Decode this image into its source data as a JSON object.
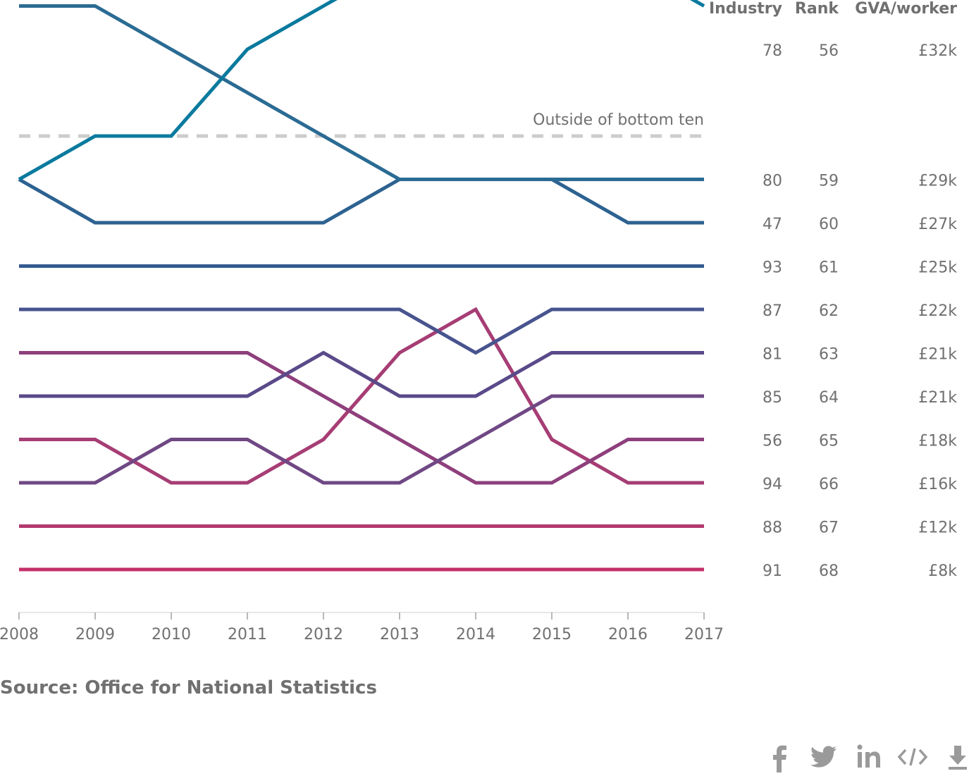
{
  "chart_data": {
    "type": "line",
    "x": [
      2008,
      2009,
      2010,
      2011,
      2012,
      2013,
      2014,
      2015,
      2016,
      2017
    ],
    "y_axis_label_rank_range": [
      56,
      68
    ],
    "separator_label": "Outside of bottom ten",
    "columns": [
      "Industry",
      "Rank",
      "GVA/worker"
    ],
    "series": [
      {
        "industry": "78",
        "rank": "56",
        "gva": "£32k",
        "color": "#0a7a9e",
        "values": [
          59,
          58,
          58,
          56,
          55,
          54,
          54,
          54,
          54,
          55
        ]
      },
      {
        "industry": "80",
        "rank": "59",
        "gva": "£29k",
        "color": "#2a6b93",
        "values": [
          55,
          55,
          56,
          57,
          58,
          59,
          59,
          59,
          59,
          59
        ]
      },
      {
        "industry": "47",
        "rank": "60",
        "gva": "£27k",
        "color": "#2d6291",
        "values": [
          59,
          60,
          60,
          60,
          60,
          59,
          59,
          59,
          60,
          60
        ]
      },
      {
        "industry": "93",
        "rank": "61",
        "gva": "£25k",
        "color": "#345a8f",
        "values": [
          61,
          61,
          61,
          61,
          61,
          61,
          61,
          61,
          61,
          61
        ]
      },
      {
        "industry": "87",
        "rank": "62",
        "gva": "£22k",
        "color": "#48548e",
        "values": [
          62,
          62,
          62,
          62,
          62,
          62,
          63,
          62,
          62,
          62
        ]
      },
      {
        "industry": "81",
        "rank": "63",
        "gva": "£21k",
        "color": "#5a4a89",
        "values": [
          64,
          64,
          64,
          64,
          63,
          64,
          64,
          63,
          63,
          63
        ]
      },
      {
        "industry": "85",
        "rank": "64",
        "gva": "£21k",
        "color": "#6f4884",
        "values": [
          66,
          66,
          65,
          65,
          66,
          66,
          65,
          64,
          64,
          64
        ]
      },
      {
        "industry": "56",
        "rank": "65",
        "gva": "£18k",
        "color": "#8e3f7c",
        "values": [
          63,
          63,
          63,
          63,
          64,
          65,
          66,
          66,
          65,
          65
        ]
      },
      {
        "industry": "94",
        "rank": "66",
        "gva": "£16k",
        "color": "#a63d74",
        "values": [
          65,
          65,
          66,
          66,
          65,
          63,
          62,
          65,
          66,
          66
        ]
      },
      {
        "industry": "88",
        "rank": "67",
        "gva": "£12k",
        "color": "#b3396f",
        "values": [
          67,
          67,
          67,
          67,
          67,
          67,
          67,
          67,
          67,
          67
        ]
      },
      {
        "industry": "91",
        "rank": "68",
        "gva": "£8k",
        "color": "#c3306a",
        "values": [
          68,
          68,
          68,
          68,
          68,
          68,
          68,
          68,
          68,
          68
        ]
      }
    ]
  },
  "source": "Source: Office for National Statistics",
  "social": [
    {
      "name": "facebook-icon",
      "label": "f"
    },
    {
      "name": "twitter-icon",
      "label": "twitter"
    },
    {
      "name": "linkedin-icon",
      "label": "in"
    },
    {
      "name": "embed-icon",
      "label": "</>"
    },
    {
      "name": "download-icon",
      "label": "download"
    }
  ]
}
